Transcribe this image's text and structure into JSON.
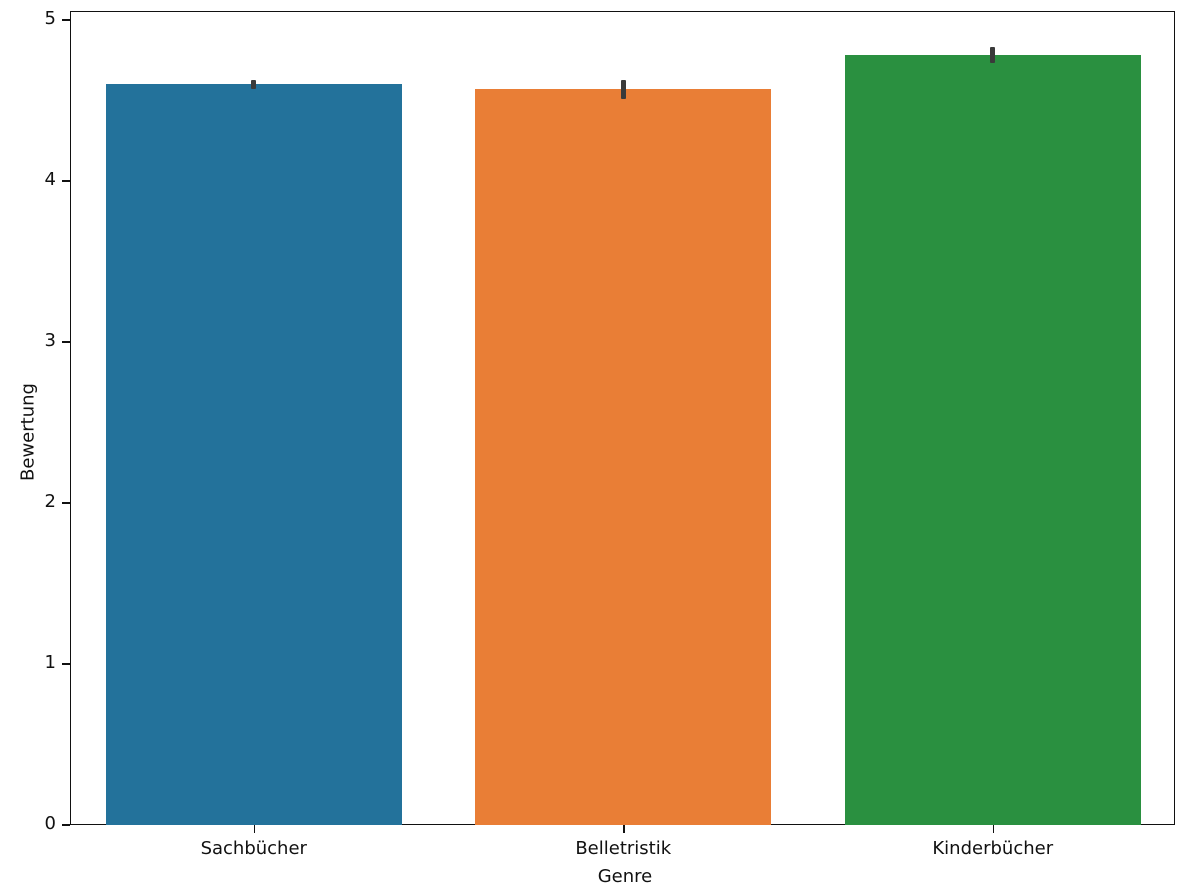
{
  "chart_data": {
    "type": "bar",
    "title": "",
    "xlabel": "Genre",
    "ylabel": "Bewertung",
    "categories": [
      "Sachbücher",
      "Belletristik",
      "Kinderbücher"
    ],
    "values": [
      4.6,
      4.57,
      4.78
    ],
    "error_bars": [
      [
        4.57,
        4.63
      ],
      [
        4.51,
        4.63
      ],
      [
        4.73,
        4.83
      ]
    ],
    "colors": [
      "#23729b",
      "#e97e36",
      "#2a9040"
    ],
    "ylim": [
      0,
      5
    ],
    "yticks": [
      0,
      1,
      2,
      3,
      4,
      5
    ],
    "grid": false,
    "legend": null
  }
}
